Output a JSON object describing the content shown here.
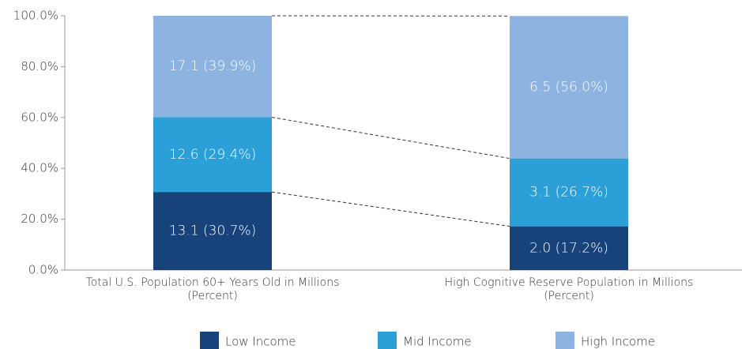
{
  "chart_data": {
    "type": "stacked_bar",
    "categories": [
      "Total U.S. Population 60+ Years Old in Millions (Percent)",
      "High Cognitive Reserve Population in Millions (Percent)"
    ],
    "series": [
      {
        "name": "Low Income",
        "color": "#17437a",
        "values": [
          30.7,
          17.2
        ],
        "value_labels": [
          "13.1 (30.7%)",
          "2.0 (17.2%)"
        ]
      },
      {
        "name": "Mid Income",
        "color": "#2a9fd8",
        "values": [
          29.4,
          26.7
        ],
        "value_labels": [
          "12.6 (29.4%)",
          "3.1 (26.7%)"
        ]
      },
      {
        "name": "High Income",
        "color": "#8db3e0",
        "values": [
          39.9,
          56.0
        ],
        "value_labels": [
          "17.1 (39.9%)",
          "6.5 (56.0%)"
        ]
      }
    ],
    "ylim": [
      0,
      100
    ],
    "yticks": [
      {
        "value": 0,
        "label": "0.0%"
      },
      {
        "value": 20,
        "label": "20.0%"
      },
      {
        "value": 40,
        "label": "40.0%"
      },
      {
        "value": 60,
        "label": "60.0%"
      },
      {
        "value": 80,
        "label": "80.0%"
      },
      {
        "value": 100,
        "label": "100.0%"
      }
    ],
    "legend": "bottom"
  }
}
